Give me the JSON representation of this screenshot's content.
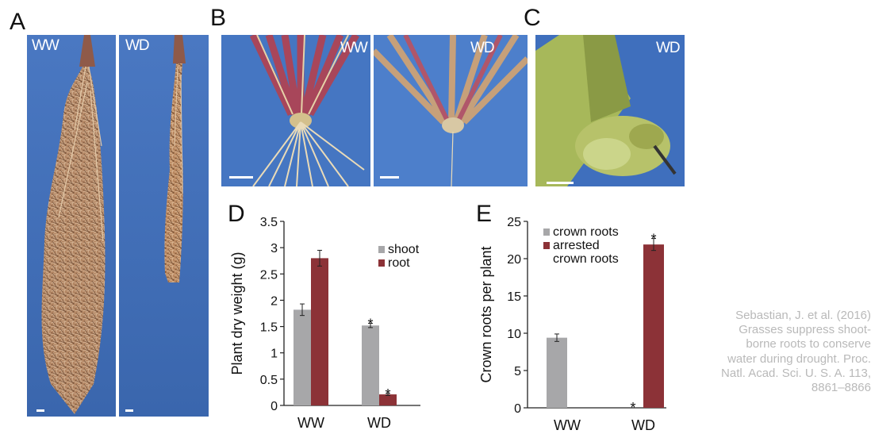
{
  "figure": {
    "panel_a": {
      "letter": "A",
      "left_label": "WW",
      "right_label": "WD"
    },
    "panel_b": {
      "letter": "B",
      "left_label": "WW",
      "right_label": "WD"
    },
    "panel_c": {
      "letter": "C",
      "label": "WD"
    },
    "citation": "Sebastian, J. et al. (2016) Grasses suppress shoot-borne roots to conserve water during drought. Proc. Natl. Acad. Sci. U. S. A. 113, 8861–8866"
  },
  "colors": {
    "gray_series": "#a7a7a9",
    "red_series": "#8c3237",
    "photo_blue": "#3f6fbd"
  },
  "chart_data": [
    {
      "panel": "D",
      "type": "bar",
      "ylabel": "Plant dry weight (g)",
      "xlabel": "",
      "categories": [
        "WW",
        "WD"
      ],
      "ylim": [
        0,
        3.5
      ],
      "yticks": [
        0,
        0.5,
        1,
        1.5,
        2,
        2.5,
        3,
        3.5
      ],
      "ytick_labels": [
        "0",
        "0.5",
        "1",
        "1.5",
        "2",
        "2.5",
        "3",
        "3.5"
      ],
      "legend_position": "top-right",
      "series": [
        {
          "name": "shoot",
          "color": "#a7a7a9",
          "values": [
            1.82,
            1.52
          ],
          "errors": [
            0.11,
            0.04
          ],
          "significance": [
            "",
            "*"
          ]
        },
        {
          "name": "root",
          "color": "#8c3237",
          "values": [
            2.8,
            0.21
          ],
          "errors": [
            0.15,
            0.02
          ],
          "significance": [
            "",
            "*"
          ]
        }
      ]
    },
    {
      "panel": "E",
      "type": "bar",
      "ylabel": "Crown roots per plant",
      "xlabel": "",
      "categories": [
        "WW",
        "WD"
      ],
      "ylim": [
        0,
        25
      ],
      "yticks": [
        0,
        5,
        10,
        15,
        20,
        25
      ],
      "ytick_labels": [
        "0",
        "5",
        "10",
        "15",
        "20",
        "25"
      ],
      "legend_position": "top-left",
      "series": [
        {
          "name": "crown roots",
          "color": "#a7a7a9",
          "values": [
            9.4,
            0
          ],
          "errors": [
            0.5,
            0
          ],
          "significance": [
            "",
            "*"
          ]
        },
        {
          "name": "arrested crown roots",
          "color": "#8c3237",
          "values": [
            0,
            21.9
          ],
          "errors": [
            0,
            0.8
          ],
          "significance": [
            "",
            "*"
          ]
        }
      ]
    }
  ]
}
